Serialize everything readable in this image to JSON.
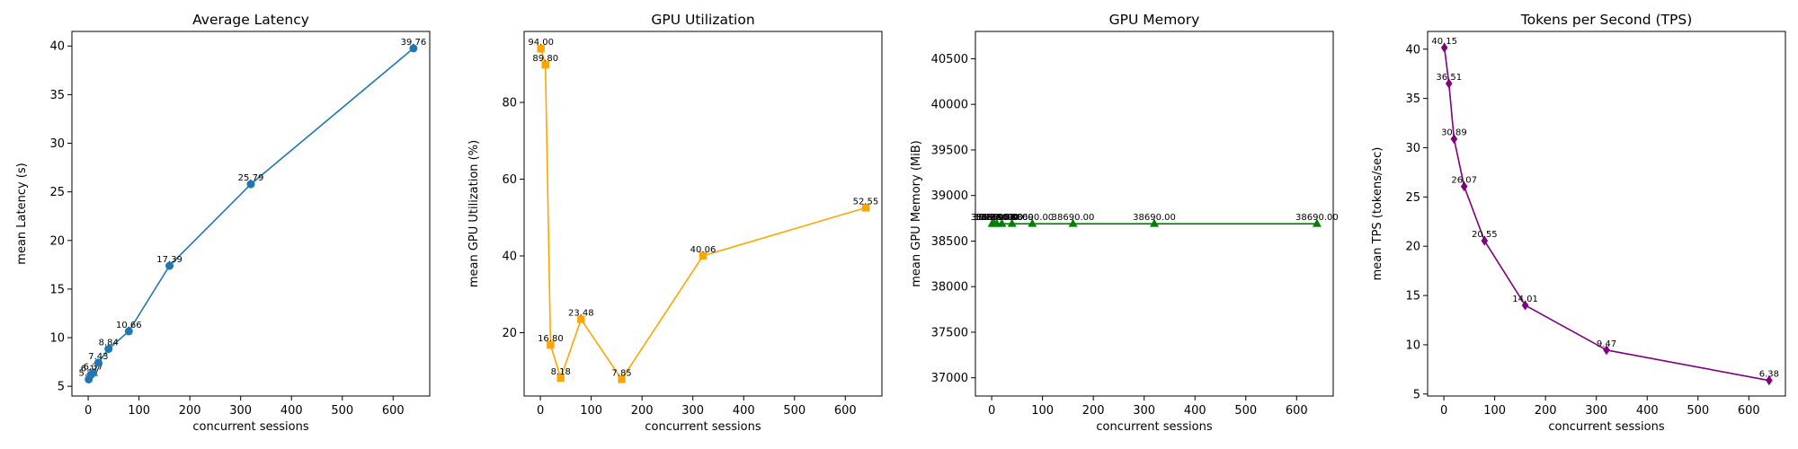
{
  "chart_data": [
    {
      "type": "line",
      "title": "Average Latency",
      "xlabel": "concurrent sessions",
      "ylabel": "mean Latency (s)",
      "color": "#1f77b4",
      "marker": "circle",
      "x": [
        1,
        5,
        10,
        20,
        40,
        80,
        160,
        320,
        640
      ],
      "values": [
        5.71,
        6.17,
        6.37,
        7.43,
        8.84,
        10.66,
        17.39,
        25.79,
        39.76
      ],
      "labels": [
        "5.71",
        "6.17",
        "6.37",
        "7.43",
        "8.84",
        "10.66",
        "17.39",
        "25.79",
        "39.76"
      ],
      "xlim": [
        -32,
        672
      ],
      "ylim": [
        4.0,
        41.5
      ],
      "xticks": [
        0,
        100,
        200,
        300,
        400,
        500,
        600
      ],
      "yticks": [
        5,
        10,
        15,
        20,
        25,
        30,
        35,
        40
      ],
      "ytick_labels": [
        "5",
        "10",
        "15",
        "20",
        "25",
        "30",
        "35",
        "40"
      ],
      "grid": false
    },
    {
      "type": "line",
      "title": "GPU Utilization",
      "xlabel": "concurrent sessions",
      "ylabel": "mean GPU Utilization (%)",
      "color": "#ffa500",
      "marker": "square",
      "x": [
        1,
        10,
        20,
        40,
        80,
        160,
        320,
        640
      ],
      "values": [
        94.0,
        89.8,
        16.8,
        8.18,
        23.48,
        7.85,
        40.06,
        52.55
      ],
      "labels": [
        "94.00",
        "89.80",
        "16.80",
        "8.18",
        "23.48",
        "7.85",
        "40.06",
        "52.55"
      ],
      "xlim": [
        -32,
        672
      ],
      "ylim": [
        3.5,
        98.5
      ],
      "xticks": [
        0,
        100,
        200,
        300,
        400,
        500,
        600
      ],
      "yticks": [
        20,
        40,
        60,
        80
      ],
      "ytick_labels": [
        "20",
        "40",
        "60",
        "80"
      ],
      "grid": false
    },
    {
      "type": "line",
      "title": "GPU Memory",
      "xlabel": "concurrent sessions",
      "ylabel": "mean GPU Memory (MiB)",
      "color": "#008000",
      "marker": "triangle",
      "x": [
        1,
        5,
        10,
        20,
        40,
        80,
        160,
        320,
        640
      ],
      "values": [
        38690.0,
        38690.0,
        38690.0,
        38690.0,
        38690.0,
        38690.0,
        38690.0,
        38690.0,
        38690.0
      ],
      "labels": [
        "38690.00",
        "38690.00",
        "38690.00",
        "38690.00",
        "38690.00",
        "38690.00",
        "38690.00",
        "38690.00",
        "38690.00"
      ],
      "xlim": [
        -32,
        672
      ],
      "ylim": [
        36800,
        40800
      ],
      "xticks": [
        0,
        100,
        200,
        300,
        400,
        500,
        600
      ],
      "yticks": [
        37000,
        37500,
        38000,
        38500,
        39000,
        39500,
        40000,
        40500
      ],
      "ytick_labels": [
        "37000",
        "37500",
        "38000",
        "38500",
        "39000",
        "39500",
        "40000",
        "40500"
      ],
      "grid": false
    },
    {
      "type": "line",
      "title": "Tokens per Second (TPS)",
      "xlabel": "concurrent sessions",
      "ylabel": "mean TPS (tokens/sec)",
      "color": "#800080",
      "marker": "diamond",
      "x": [
        1,
        10,
        20,
        40,
        80,
        160,
        320,
        640
      ],
      "values": [
        40.15,
        36.51,
        30.89,
        26.07,
        20.55,
        14.01,
        9.47,
        6.38
      ],
      "labels": [
        "40.15",
        "36.51",
        "30.89",
        "26.07",
        "20.55",
        "14.01",
        "9.47",
        "6.38"
      ],
      "xlim": [
        -32,
        672
      ],
      "ylim": [
        4.8,
        41.8
      ],
      "xticks": [
        0,
        100,
        200,
        300,
        400,
        500,
        600
      ],
      "yticks": [
        5,
        10,
        15,
        20,
        25,
        30,
        35,
        40
      ],
      "ytick_labels": [
        "5",
        "10",
        "15",
        "20",
        "25",
        "30",
        "35",
        "40"
      ],
      "grid": false
    }
  ]
}
